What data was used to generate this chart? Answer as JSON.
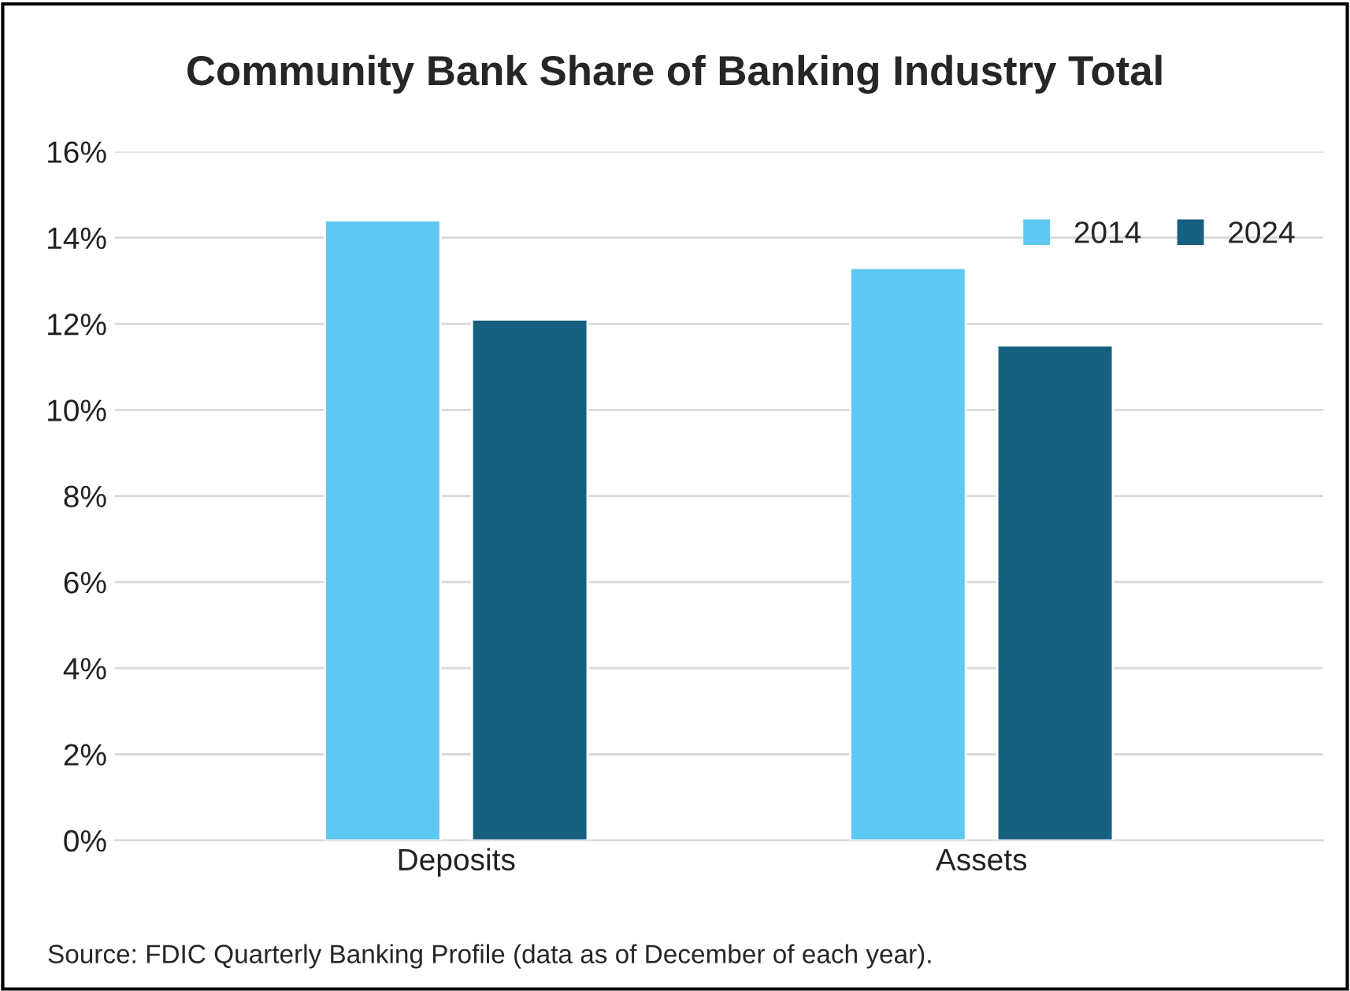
{
  "chart_data": {
    "type": "bar",
    "title": "Community Bank Share of Banking Industry Total",
    "categories": [
      "Deposits",
      "Assets"
    ],
    "series": [
      {
        "name": "2014",
        "color": "#5ec8f2",
        "values": [
          14.4,
          13.3
        ]
      },
      {
        "name": "2024",
        "color": "#17607f",
        "values": [
          12.1,
          11.5
        ]
      }
    ],
    "ylim": [
      0,
      16
    ],
    "yticks": [
      {
        "value": 0,
        "label": "0%"
      },
      {
        "value": 2,
        "label": "2%"
      },
      {
        "value": 4,
        "label": "4%"
      },
      {
        "value": 6,
        "label": "6%"
      },
      {
        "value": 8,
        "label": "8%"
      },
      {
        "value": 10,
        "label": "10%"
      },
      {
        "value": 12,
        "label": "12%"
      },
      {
        "value": 14,
        "label": "14%"
      },
      {
        "value": 16,
        "label": "16%"
      }
    ],
    "grid": "y",
    "legend": "top right",
    "annotations": [
      "Source: FDIC Quarterly Banking Profile (data as of December of each year)."
    ]
  }
}
